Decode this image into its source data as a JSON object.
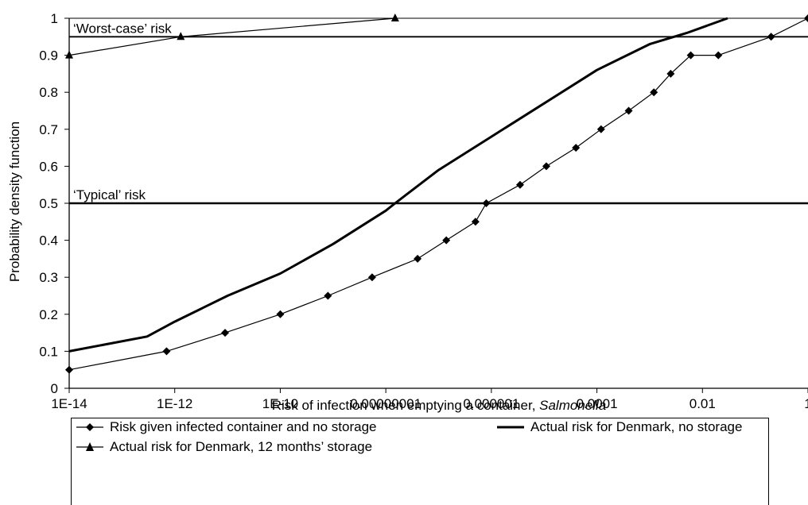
{
  "chart_data": {
    "type": "line",
    "xscale": "log",
    "xlabel_prefix": "Risk of infection when emptying a container, ",
    "xlabel_italic": "Salmonella",
    "ylabel": "Probability density function",
    "xlim": [
      1e-14,
      1
    ],
    "ylim": [
      0,
      1
    ],
    "x_ticks": [
      {
        "value": 1e-14,
        "label": "1E-14"
      },
      {
        "value": 1e-12,
        "label": "1E-12"
      },
      {
        "value": 1e-10,
        "label": "1E-10"
      },
      {
        "value": 1e-08,
        "label": "0.00000001"
      },
      {
        "value": 1e-06,
        "label": "0.000001"
      },
      {
        "value": 0.0001,
        "label": "0.0001"
      },
      {
        "value": 0.01,
        "label": "0.01"
      },
      {
        "value": 1,
        "label": "1"
      }
    ],
    "y_ticks": [
      {
        "value": 0,
        "label": "0"
      },
      {
        "value": 0.1,
        "label": "0.1"
      },
      {
        "value": 0.2,
        "label": "0.2"
      },
      {
        "value": 0.3,
        "label": "0.3"
      },
      {
        "value": 0.4,
        "label": "0.4"
      },
      {
        "value": 0.5,
        "label": "0.5"
      },
      {
        "value": 0.6,
        "label": "0.6"
      },
      {
        "value": 0.7,
        "label": "0.7"
      },
      {
        "value": 0.8,
        "label": "0.8"
      },
      {
        "value": 0.9,
        "label": "0.9"
      },
      {
        "value": 1,
        "label": "1"
      }
    ],
    "reference_lines": [
      {
        "label": "‘Worst-case’ risk",
        "y": 0.95
      },
      {
        "label": "‘Typical’ risk",
        "y": 0.5
      }
    ],
    "series": [
      {
        "name": "Risk given infected container and no storage",
        "marker": "diamond",
        "x": [
          1e-14,
          7e-13,
          9e-12,
          1e-10,
          8e-10,
          5.5e-09,
          4e-08,
          1.4e-07,
          5e-07,
          8e-07,
          3.5e-06,
          1.1e-05,
          4e-05,
          0.00012,
          0.0004,
          0.0012,
          0.0025,
          0.006,
          0.02,
          0.2,
          1
        ],
        "y": [
          0.05,
          0.1,
          0.15,
          0.2,
          0.25,
          0.3,
          0.35,
          0.4,
          0.45,
          0.5,
          0.55,
          0.6,
          0.65,
          0.7,
          0.75,
          0.8,
          0.85,
          0.9,
          0.9,
          0.95,
          1.0
        ]
      },
      {
        "name": "Actual risk for Denmark, no storage",
        "marker": "none",
        "x": [
          1e-14,
          3e-13,
          1e-12,
          1e-11,
          1e-10,
          1e-09,
          1e-08,
          1.5e-08,
          1e-07,
          1e-06,
          1e-05,
          0.0001,
          0.001,
          0.005,
          0.03
        ],
        "y": [
          0.1,
          0.14,
          0.18,
          0.25,
          0.31,
          0.39,
          0.48,
          0.5,
          0.59,
          0.68,
          0.77,
          0.86,
          0.93,
          0.96,
          1.0
        ]
      },
      {
        "name": "Actual risk for Denmark, 12 months’ storage",
        "marker": "triangle",
        "x": [
          1e-14,
          1.3e-12,
          1.5e-08
        ],
        "y": [
          0.9,
          0.95,
          1.0
        ]
      }
    ],
    "legend": "bottom",
    "grid": false
  }
}
